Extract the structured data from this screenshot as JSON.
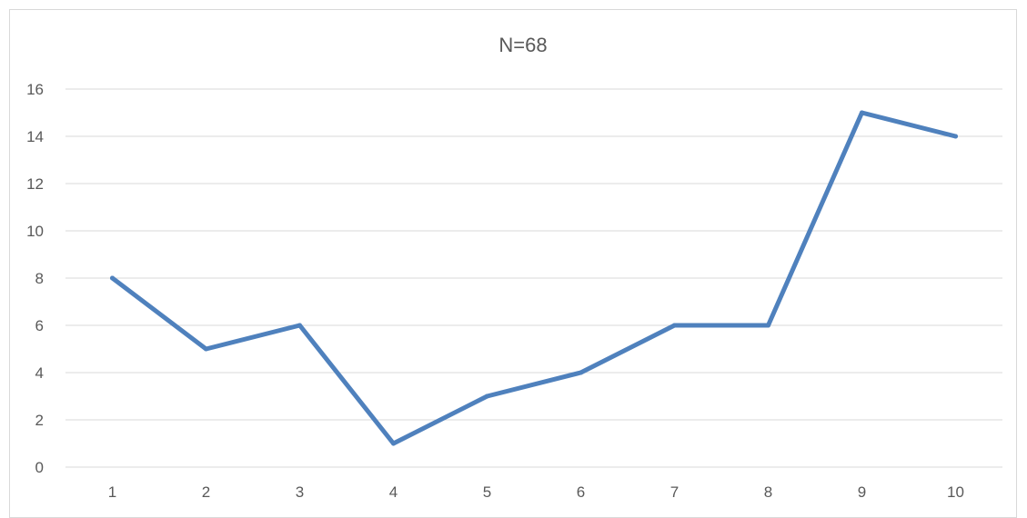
{
  "chart_data": {
    "type": "line",
    "title": "N=68",
    "xlabel": "",
    "ylabel": "",
    "x": [
      "1",
      "2",
      "3",
      "4",
      "5",
      "6",
      "7",
      "8",
      "9",
      "10"
    ],
    "series": [
      {
        "values": [
          8,
          5,
          6,
          1,
          3,
          4,
          6,
          6,
          15,
          14
        ],
        "color": "#4f81bd"
      }
    ],
    "ylim": [
      0,
      16
    ],
    "yticks": [
      "0",
      "2",
      "4",
      "6",
      "8",
      "10",
      "12",
      "14",
      "16"
    ],
    "grid": true,
    "legend": "none"
  }
}
